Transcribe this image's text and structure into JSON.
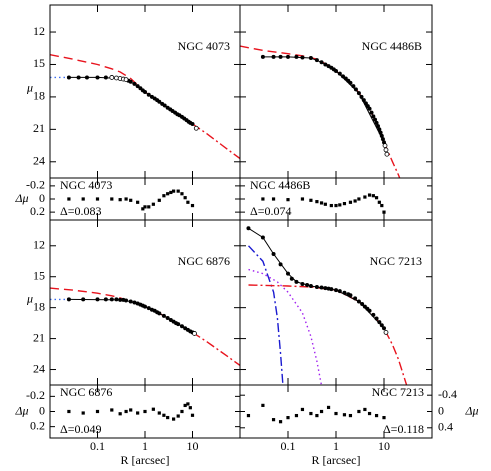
{
  "chart_data": {
    "type": "profile-grid",
    "x_label": "R [arcsec]",
    "y_label": "μ",
    "residual_label": "Δμ",
    "log_x": true,
    "xlim": [
      0.01,
      100
    ],
    "xticks": [
      0.1,
      1,
      10
    ],
    "ylim": [
      25.5,
      9.5
    ],
    "yticks": [
      12,
      15,
      18,
      21,
      24
    ],
    "point_color": "#000000",
    "panels": [
      {
        "name": "NGC 4073",
        "residual_name": "NGC 4073",
        "delta": "Δ=0.083",
        "points": {
          "x": [
            0.025,
            0.04,
            0.06,
            0.1,
            0.15,
            0.45,
            0.5,
            0.6,
            0.7,
            0.8,
            0.9,
            1,
            1.2,
            1.4,
            1.6,
            1.8,
            2,
            2.3,
            2.6,
            3,
            3.4,
            3.8,
            4.3,
            4.8,
            5.3,
            6,
            6.7,
            7.5,
            8.3,
            9,
            10
          ],
          "values": [
            16.2,
            16.2,
            16.2,
            16.2,
            16.2,
            16.5,
            16.6,
            16.8,
            17.0,
            17.2,
            17.4,
            17.55,
            17.8,
            18.0,
            18.15,
            18.3,
            18.45,
            18.65,
            18.8,
            19.0,
            19.15,
            19.3,
            19.45,
            19.6,
            19.7,
            19.85,
            20.0,
            20.15,
            20.3,
            20.4,
            20.5
          ]
        },
        "open_points": {
          "x": [
            0.2,
            0.25,
            0.3,
            0.35,
            0.4,
            12
          ],
          "values": [
            16.2,
            16.25,
            16.3,
            16.35,
            16.4,
            20.9
          ]
        },
        "curves": [
          {
            "style": "dashed",
            "color": "#e8141e",
            "x": [
              0.01,
              0.03,
              0.1,
              0.2,
              0.3,
              0.5,
              0.7,
              1,
              2,
              3,
              5,
              10
            ],
            "values": [
              14.1,
              14.5,
              15.0,
              15.4,
              15.7,
              16.3,
              16.9,
              17.55,
              18.45,
              19.0,
              19.65,
              20.5
            ]
          },
          {
            "style": "dash-dot",
            "color": "#e8141e",
            "x": [
              10,
              20,
              40,
              70,
              100
            ],
            "values": [
              20.5,
              21.4,
              22.4,
              23.2,
              23.7
            ]
          },
          {
            "style": "dotted",
            "color": "#3a6cf0",
            "x": [
              0.01,
              0.02,
              0.025
            ],
            "values": [
              16.2,
              16.2,
              16.2
            ]
          },
          {
            "style": "solid",
            "color": "#000000",
            "x": [
              0.025,
              0.1,
              0.3,
              0.45,
              0.7,
              1,
              2,
              3,
              5,
              10
            ],
            "values": [
              16.2,
              16.2,
              16.3,
              16.5,
              17.0,
              17.55,
              18.45,
              19.0,
              19.65,
              20.5
            ]
          }
        ],
        "residual": {
          "axis": "left",
          "ylim": [
            0.32,
            -0.32
          ],
          "yticks": [
            -0.2,
            0,
            0.2
          ],
          "x": [
            0.025,
            0.05,
            0.1,
            0.2,
            0.3,
            0.4,
            0.5,
            0.7,
            0.9,
            1,
            1.2,
            1.5,
            2,
            2.5,
            3,
            3.5,
            4,
            5,
            6,
            7,
            8,
            10
          ],
          "values": [
            0,
            0,
            0,
            0,
            0.01,
            0,
            0.02,
            0.05,
            0.15,
            0.12,
            0.12,
            0.08,
            0.02,
            -0.05,
            -0.08,
            -0.1,
            -0.12,
            -0.12,
            -0.08,
            -0.02,
            0.05,
            0.1
          ]
        }
      },
      {
        "name": "NGC 4486B",
        "residual_name": "NGC 4486B",
        "delta": "Δ=0.074",
        "points": {
          "x": [
            0.03,
            0.05,
            0.07,
            0.1,
            0.15,
            0.2,
            0.3,
            0.4,
            0.5,
            0.6,
            0.7,
            0.8,
            0.9,
            1,
            1.2,
            1.4,
            1.6,
            1.8,
            2,
            2.3,
            2.6,
            3,
            3.4,
            3.8,
            4.2,
            4.6,
            5,
            5.5,
            6,
            6.5,
            7,
            7.5,
            8,
            8.5,
            9,
            9.5,
            10
          ],
          "values": [
            14.3,
            14.3,
            14.3,
            14.3,
            14.3,
            14.35,
            14.4,
            14.6,
            14.8,
            15.0,
            15.15,
            15.3,
            15.45,
            15.6,
            15.85,
            16.1,
            16.3,
            16.5,
            16.7,
            17.0,
            17.3,
            17.65,
            18.0,
            18.3,
            18.6,
            18.85,
            19.1,
            19.45,
            19.8,
            20.1,
            20.4,
            20.7,
            21.0,
            21.3,
            21.6,
            21.9,
            22.2
          ]
        },
        "open_points": {
          "x": [
            10.5,
            11,
            11.5
          ],
          "values": [
            22.5,
            22.9,
            23.3
          ]
        },
        "curves": [
          {
            "style": "dashed",
            "color": "#e8141e",
            "x": [
              0.01,
              0.03,
              0.1,
              0.2,
              0.4,
              0.7,
              1,
              2,
              3,
              5,
              8,
              10
            ],
            "values": [
              13.3,
              13.7,
              14.0,
              14.2,
              14.5,
              15.1,
              15.6,
              16.7,
              17.6,
              19.1,
              21.0,
              22.2
            ]
          },
          {
            "style": "dash-dot",
            "color": "#e8141e",
            "x": [
              10,
              12,
              15,
              20,
              25
            ],
            "values": [
              22.2,
              23.0,
              24.0,
              25.2,
              26.3
            ]
          },
          {
            "style": "solid",
            "color": "#000000",
            "x": [
              0.03,
              0.1,
              0.3,
              0.5,
              1,
              3,
              10
            ],
            "values": [
              14.3,
              14.3,
              14.4,
              14.8,
              15.6,
              17.65,
              22.2
            ]
          }
        ],
        "residual": {
          "axis": "left",
          "ylim": [
            0.32,
            -0.32
          ],
          "yticks": [
            -0.2,
            0,
            0.2
          ],
          "x": [
            0.03,
            0.05,
            0.1,
            0.2,
            0.3,
            0.4,
            0.5,
            0.6,
            0.8,
            1,
            1.2,
            1.5,
            2,
            2.5,
            3,
            4,
            5,
            6,
            7,
            8,
            9,
            10
          ],
          "values": [
            0,
            0,
            0.01,
            0,
            0.02,
            0.04,
            0.06,
            0.08,
            0.1,
            0.1,
            0.09,
            0.07,
            0.05,
            0.03,
            0.0,
            -0.03,
            -0.06,
            -0.05,
            -0.02,
            0.05,
            0.1,
            0.2
          ]
        }
      },
      {
        "name": "NGC 6876",
        "residual_name": "NGC 6876",
        "delta": "Δ=0.049",
        "points": {
          "x": [
            0.025,
            0.05,
            0.1,
            0.15,
            0.2,
            0.25,
            0.3,
            0.35,
            0.4,
            0.5,
            0.6,
            0.7,
            0.8,
            0.9,
            1,
            1.2,
            1.4,
            1.6,
            1.8,
            2,
            2.5,
            3,
            3.5,
            4,
            4.5,
            5,
            6,
            7,
            8,
            9,
            10
          ],
          "values": [
            17.2,
            17.2,
            17.2,
            17.2,
            17.2,
            17.2,
            17.25,
            17.25,
            17.3,
            17.4,
            17.5,
            17.6,
            17.7,
            17.8,
            17.9,
            18.05,
            18.2,
            18.3,
            18.45,
            18.55,
            18.8,
            19.0,
            19.2,
            19.35,
            19.5,
            19.6,
            19.8,
            20.0,
            20.15,
            20.3,
            20.4
          ]
        },
        "open_points": {
          "x": [
            11
          ],
          "values": [
            20.5
          ]
        },
        "curves": [
          {
            "style": "dashed",
            "color": "#e8141e",
            "x": [
              0.01,
              0.03,
              0.1,
              0.2,
              0.3,
              0.5,
              1,
              2,
              5,
              10
            ],
            "values": [
              16.1,
              16.3,
              16.6,
              16.85,
              17.05,
              17.4,
              17.9,
              18.55,
              19.6,
              20.4
            ]
          },
          {
            "style": "dash-dot",
            "color": "#e8141e",
            "x": [
              10,
              20,
              50,
              100
            ],
            "values": [
              20.4,
              21.3,
              22.6,
              23.6
            ]
          },
          {
            "style": "dotted",
            "color": "#3a6cf0",
            "x": [
              0.01,
              0.025
            ],
            "values": [
              17.2,
              17.2
            ]
          },
          {
            "style": "solid",
            "color": "#000000",
            "x": [
              0.025,
              0.3,
              0.5,
              1,
              2,
              5,
              10
            ],
            "values": [
              17.2,
              17.25,
              17.4,
              17.9,
              18.55,
              19.6,
              20.4
            ]
          }
        ],
        "residual": {
          "axis": "left",
          "ylim": [
            0.35,
            -0.35
          ],
          "yticks": [
            -0.2,
            0,
            0.2
          ],
          "x": [
            0.025,
            0.05,
            0.1,
            0.2,
            0.3,
            0.4,
            0.5,
            0.7,
            1,
            1.5,
            2,
            2.5,
            3,
            4,
            5,
            6,
            7,
            8,
            9,
            10
          ],
          "values": [
            0,
            0.02,
            0,
            -0.02,
            0.03,
            0,
            -0.02,
            0.02,
            0,
            -0.03,
            0.02,
            0.05,
            0.08,
            0.1,
            0.06,
            0.0,
            -0.08,
            -0.1,
            -0.05,
            0.05
          ]
        }
      },
      {
        "name": "NGC 7213",
        "residual_name": "NGC 7213",
        "delta": "Δ=0.118",
        "points": {
          "x": [
            0.015,
            0.03,
            0.05,
            0.07,
            0.1,
            0.12,
            0.15,
            0.2,
            0.25,
            0.3,
            0.4,
            0.5,
            0.6,
            0.7,
            0.8,
            1,
            1.2,
            1.5,
            1.8,
            2,
            2.5,
            3,
            3.5,
            4,
            4.5,
            5,
            6,
            7,
            8,
            9,
            10
          ],
          "values": [
            10.3,
            11.2,
            12.8,
            13.8,
            14.7,
            15.2,
            15.5,
            15.7,
            15.8,
            15.9,
            16.0,
            16.05,
            16.1,
            16.15,
            16.2,
            16.3,
            16.4,
            16.55,
            16.7,
            16.8,
            17.1,
            17.4,
            17.65,
            17.9,
            18.1,
            18.3,
            18.7,
            19.05,
            19.4,
            19.7,
            20.0
          ]
        },
        "open_points": {
          "x": [
            11
          ],
          "values": [
            20.4
          ]
        },
        "curves": [
          {
            "style": "dash-dot",
            "color": "#1a1ad0",
            "x": [
              0.015,
              0.03,
              0.05,
              0.06,
              0.07,
              0.08
            ],
            "values": [
              12.0,
              13.5,
              16.5,
              19.0,
              22.5,
              26.0
            ]
          },
          {
            "style": "dotted",
            "color": "#a020f0",
            "x": [
              0.015,
              0.03,
              0.06,
              0.1,
              0.2,
              0.3,
              0.4,
              0.5
            ],
            "values": [
              14.3,
              14.7,
              15.5,
              16.5,
              18.5,
              20.8,
              23.2,
              25.6
            ]
          },
          {
            "style": "dash-dot",
            "color": "#e8141e",
            "x": [
              0.015,
              0.1,
              0.3,
              1,
              3,
              5,
              10,
              15,
              20,
              30
            ],
            "values": [
              15.8,
              15.9,
              16.0,
              16.3,
              17.4,
              18.3,
              20.0,
              21.6,
              23.0,
              25.6
            ]
          },
          {
            "style": "solid",
            "color": "#000000",
            "x": [
              0.015,
              0.03,
              0.05,
              0.1,
              0.15,
              0.3,
              1,
              3,
              10
            ],
            "values": [
              10.3,
              11.2,
              12.8,
              14.7,
              15.5,
              15.9,
              16.3,
              17.4,
              20.0
            ]
          }
        ],
        "residual": {
          "axis": "right",
          "ylim": [
            0.65,
            -0.65
          ],
          "yticks": [
            -0.4,
            0,
            0.4
          ],
          "x": [
            0.015,
            0.03,
            0.05,
            0.07,
            0.1,
            0.15,
            0.2,
            0.3,
            0.4,
            0.5,
            0.7,
            1,
            1.5,
            2,
            3,
            4,
            5,
            7,
            10
          ],
          "values": [
            0.1,
            -0.15,
            0.2,
            0.25,
            0.15,
            0.1,
            -0.05,
            0.05,
            0.1,
            0.0,
            -0.1,
            0.05,
            0.08,
            0.1,
            0.0,
            -0.05,
            0.05,
            0.1,
            0.15
          ]
        }
      }
    ]
  }
}
